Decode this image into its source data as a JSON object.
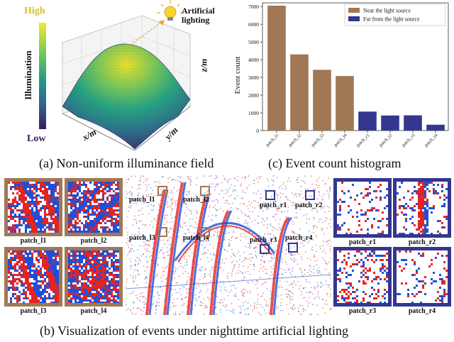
{
  "panel_a": {
    "caption": "(a) Non-uniform illuminance field",
    "colorbar": {
      "high": "High",
      "low": "Low",
      "title": "Illumination",
      "top_color": "#f5e72b",
      "bottom_color": "#3b1a5e"
    },
    "lamp_label": "Artificial\nlighting",
    "axes": {
      "x": "x/m",
      "y": "y/m",
      "z": "z/m"
    }
  },
  "panel_b": {
    "caption": "(b) Visualization of events under nighttime artificial lighting",
    "left_patches": [
      "patch_l1",
      "patch_l2",
      "patch_l3",
      "patch_l4"
    ],
    "right_patches": [
      "patch_r1",
      "patch_r2",
      "patch_r3",
      "patch_r4"
    ],
    "scene_labels": [
      "patch_l1",
      "patch_l2",
      "patch_l3",
      "patch_l4",
      "patch_r1",
      "patch_r2",
      "patch_r3",
      "patch_r4"
    ],
    "near_color": "#a07855",
    "far_color": "#33378f",
    "event_pos_color": "#e8231f",
    "event_neg_color": "#1f4fd8"
  },
  "panel_c": {
    "caption": "(c) Event count histogram"
  },
  "chart_data": {
    "type": "bar",
    "categories": [
      "patch_l1",
      "patch_l2",
      "patch_l3",
      "patch_l4",
      "patch_r1",
      "patch_r2",
      "patch_r3",
      "patch_r4"
    ],
    "values": [
      7050,
      4300,
      3430,
      3080,
      1070,
      850,
      860,
      330
    ],
    "series": [
      {
        "name": "Near the light source",
        "color": "#a07855",
        "categories": [
          "patch_l1",
          "patch_l2",
          "patch_l3",
          "patch_l4"
        ]
      },
      {
        "name": "Far from the light source",
        "color": "#33378f",
        "categories": [
          "patch_r1",
          "patch_r2",
          "patch_r3",
          "patch_r4"
        ]
      }
    ],
    "ylabel": "Event count",
    "ylim": [
      0,
      7000
    ],
    "yticks": [
      0,
      1000,
      2000,
      3000,
      4000,
      5000,
      6000,
      7000
    ],
    "legend": "top-right",
    "grid": false
  }
}
